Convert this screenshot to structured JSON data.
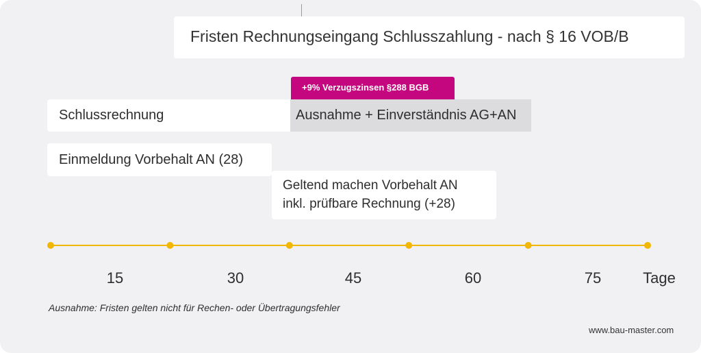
{
  "title": "Fristen Rechnungseingang Schlusszahlung - nach § 16 VOB/B",
  "badge": "+9% Verzugszinsen §288 BGB",
  "boxes": {
    "schlussrechnung": "Schlussrechnung",
    "ausnahme": "Ausnahme + Einverständnis AG+AN",
    "einmeldung": "Einmeldung Vorbehalt AN (28)",
    "geltend_line1": "Geltend machen Vorbehalt AN",
    "geltend_line2": "inkl. prüfbare Rechnung (+28)"
  },
  "timeline": {
    "labels": [
      "15",
      "30",
      "45",
      "60",
      "75",
      "Tage"
    ],
    "dot_count": 6,
    "line_color": "#f2b705"
  },
  "note": "Ausnahme: Fristen gelten nicht für Rechen- oder Übertragungsfehler",
  "website": "www.bau-master.com",
  "colors": {
    "background": "#f1f1f3",
    "badge": "#c4077f",
    "highlight_box": "#dcdcdf",
    "timeline": "#f2b705"
  }
}
